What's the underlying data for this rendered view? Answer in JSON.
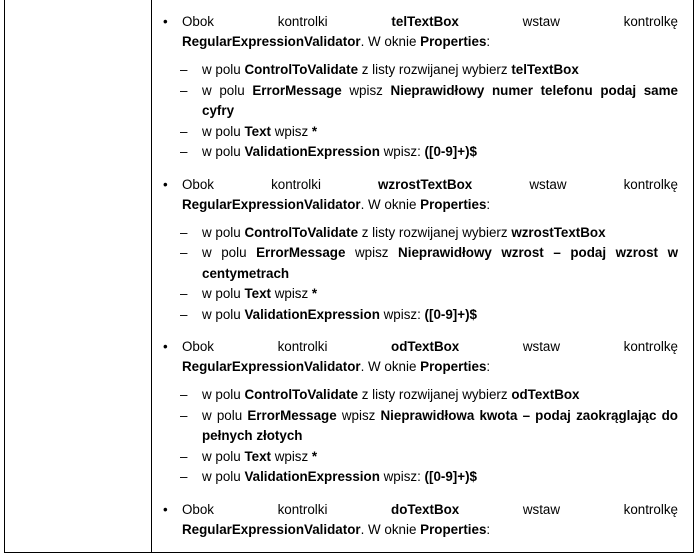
{
  "blocks": [
    {
      "intro": {
        "w1": "Obok",
        "w2": "kontrolki",
        "control": "telTextBox",
        "w3": "wstaw",
        "w4": "kontrolkę",
        "validator": "RegularExpressionValidator",
        "mid": ". W oknie ",
        "props": "Properties",
        "end": ":"
      },
      "items": [
        [
          "w polu ",
          "ControlToValidate",
          " z listy rozwijanej wybierz ",
          "telTextBox"
        ],
        [
          "w polu ",
          "ErrorMessage",
          " wpisz ",
          "Nieprawidłowy numer telefonu podaj same cyfry"
        ],
        [
          "w polu ",
          "Text",
          " wpisz ",
          "*"
        ],
        [
          "w polu ",
          "ValidationExpression",
          " wpisz: ",
          "([0-9]+)$"
        ]
      ]
    },
    {
      "intro": {
        "w1": "Obok",
        "w2": "kontrolki",
        "control": "wzrostTextBox",
        "w3": "wstaw",
        "w4": "kontrolkę",
        "validator": "RegularExpressionValidator",
        "mid": ". W oknie ",
        "props": "Properties",
        "end": ":"
      },
      "items": [
        [
          "w polu ",
          "ControlToValidate",
          " z listy rozwijanej wybierz ",
          "wzrostTextBox"
        ],
        [
          "w polu ",
          "ErrorMessage",
          " wpisz ",
          "Nieprawidłowy wzrost – podaj wzrost w centymetrach"
        ],
        [
          "w polu ",
          "Text",
          " wpisz ",
          "*"
        ],
        [
          "w polu ",
          "ValidationExpression",
          " wpisz: ",
          "([0-9]+)$"
        ]
      ]
    },
    {
      "intro": {
        "w1": "Obok",
        "w2": "kontrolki",
        "control": "odTextBox",
        "w3": "wstaw",
        "w4": "kontrolkę",
        "validator": "RegularExpressionValidator",
        "mid": ". W oknie ",
        "props": "Properties",
        "end": ":"
      },
      "items": [
        [
          "w polu ",
          "ControlToValidate",
          " z listy rozwijanej wybierz ",
          "odTextBox"
        ],
        [
          "w polu ",
          "ErrorMessage",
          " wpisz ",
          "Nieprawidłowa kwota – podaj zaokrąglając do pełnych złotych"
        ],
        [
          "w polu ",
          "Text",
          " wpisz ",
          "*"
        ],
        [
          "w polu ",
          "ValidationExpression",
          " wpisz: ",
          "([0-9]+)$"
        ]
      ]
    },
    {
      "intro": {
        "w1": "Obok",
        "w2": "kontrolki",
        "control": "doTextBox",
        "w3": "wstaw",
        "w4": "kontrolkę",
        "validator": "RegularExpressionValidator",
        "mid": ". W oknie ",
        "props": "Properties",
        "end": ":"
      },
      "items": []
    }
  ]
}
